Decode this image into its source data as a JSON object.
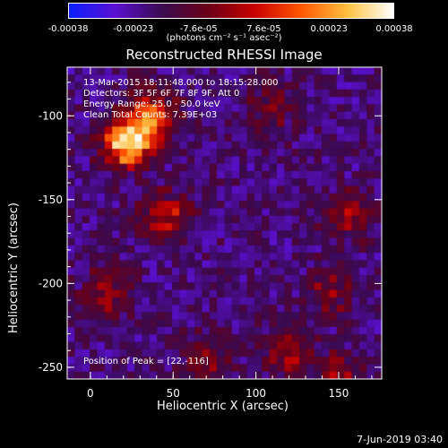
{
  "colorbar": {
    "ticks": [
      "-0.00038",
      "-0.00023",
      "-7.6e-05",
      "7.6e-05",
      "0.00023",
      "0.00038"
    ],
    "unit_label": "(photons cm⁻² s⁻¹ asec⁻²)",
    "colors": [
      "#0a1eff",
      "#5a10d0",
      "#3a0a50",
      "#6a0018",
      "#c80000",
      "#ff5500",
      "#ffc040",
      "#ffffff"
    ]
  },
  "chart_data": {
    "type": "heatmap",
    "title": "Reconstructed RHESSI Image",
    "xlabel": "Heliocentric X (arcsec)",
    "ylabel": "Heliocentric Y (arcsec)",
    "xlim": [
      -14,
      176
    ],
    "ylim": [
      -257,
      -71
    ],
    "x_ticks": [
      0,
      50,
      100,
      150
    ],
    "y_ticks": [
      -100,
      -150,
      -200,
      -250
    ],
    "clim": [
      -0.00038,
      0.00038
    ],
    "peak_position": [
      22,
      -116
    ],
    "annotations": {
      "time": "13-Mar-2015 18:11:48.000 to 18:15:28.000",
      "detectors": "Detectors: 3F 5F 6F 7F 8F 9F, Att 0",
      "energy": "Energy Range: 25.0 - 50.0 keV",
      "method": "Clean     Total Counts: 7.39E+03",
      "peak": "Position of Peak = [22,-116]"
    },
    "bright_regions": [
      {
        "x": 22,
        "y": -116,
        "level": 1.0
      },
      {
        "x": 38,
        "y": -100,
        "level": 0.6
      },
      {
        "x": 45,
        "y": -160,
        "level": 0.45
      },
      {
        "x": 10,
        "y": -205,
        "level": 0.35
      },
      {
        "x": 155,
        "y": -160,
        "level": 0.35
      },
      {
        "x": 145,
        "y": -205,
        "level": 0.3
      },
      {
        "x": 120,
        "y": -240,
        "level": 0.35
      },
      {
        "x": 70,
        "y": -245,
        "level": 0.3
      },
      {
        "x": 110,
        "y": -95,
        "level": 0.25
      },
      {
        "x": 150,
        "y": -255,
        "level": 0.3
      }
    ]
  },
  "footer": {
    "date": "7-Jun-2019 03:40"
  }
}
